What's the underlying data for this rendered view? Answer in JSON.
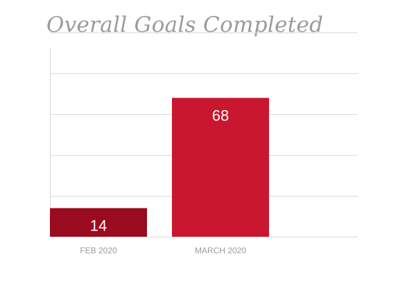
{
  "chart_data": {
    "type": "bar",
    "title": "Overall Goals Completed",
    "categories": [
      "FEB 2020",
      "MARCH 2020"
    ],
    "values": [
      14,
      68
    ],
    "bar_colors": [
      "#9a0b20",
      "#c8172e"
    ],
    "label_color": "#ffffff",
    "grid_color": "#d9d9d9",
    "ylim": [
      0,
      100
    ],
    "grid": true,
    "xlabel": "",
    "ylabel": ""
  }
}
